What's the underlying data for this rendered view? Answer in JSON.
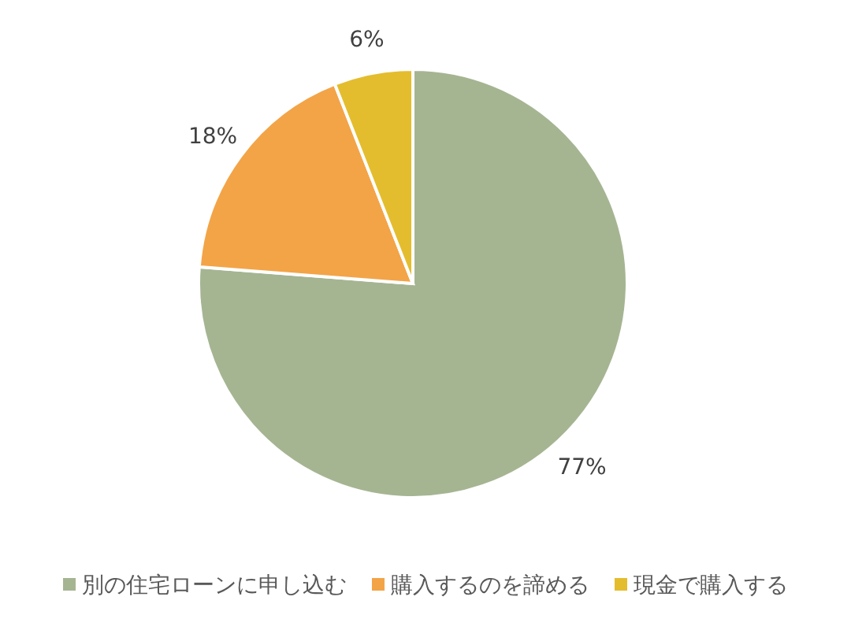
{
  "chart_data": {
    "type": "pie",
    "categories": [
      "別の住宅ローンに申し込む",
      "購入するのを諦める",
      "現金で購入する"
    ],
    "values": [
      77,
      18,
      6
    ],
    "colors": [
      "#a5b592",
      "#f3a447",
      "#e4bd2e"
    ],
    "value_labels": [
      "77%",
      "18%",
      "6%"
    ],
    "legend": "bottom"
  }
}
